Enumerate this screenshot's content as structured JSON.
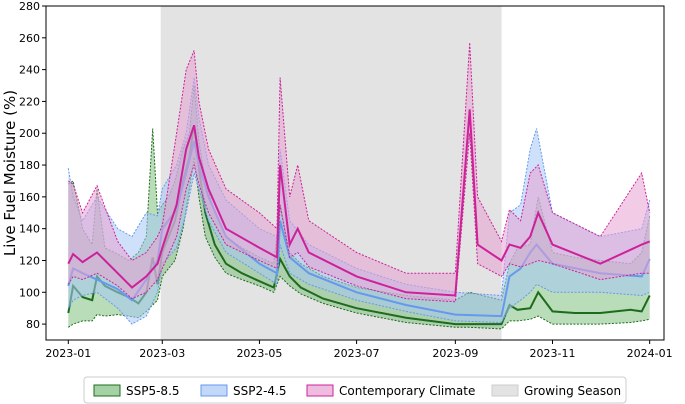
{
  "chart_data": {
    "type": "line",
    "title": "",
    "xlabel": "",
    "ylabel": "Live Fuel Moisture (%)",
    "xlim": [
      "2022-12-18",
      "2024-01-10"
    ],
    "ylim": [
      70,
      280
    ],
    "x_ticks": [
      "2023-01-01",
      "2023-03-01",
      "2023-05-01",
      "2023-07-01",
      "2023-09-01",
      "2023-11-01",
      "2024-01-01"
    ],
    "x_tick_labels": [
      "2023-01",
      "2023-03",
      "2023-05",
      "2023-07",
      "2023-09",
      "2023-11",
      "2024-01"
    ],
    "y_ticks": [
      80,
      100,
      120,
      140,
      160,
      180,
      200,
      220,
      240,
      260,
      280
    ],
    "grid": false,
    "legend_position": "bottom-outside",
    "shaded_region": {
      "name": "Growing Season",
      "start": "2023-02-28",
      "end": "2023-09-30",
      "color": "#e3e3e3"
    },
    "series": [
      {
        "name": "SSP5-8.5",
        "color": "#1d6b1d",
        "band_color": "#7fbf7f",
        "points": [
          [
            "2023-01-01",
            87,
            78,
            168
          ],
          [
            "2023-01-04",
            104,
            80,
            170
          ],
          [
            "2023-01-10",
            97,
            82,
            140
          ],
          [
            "2023-01-16",
            95,
            82,
            130
          ],
          [
            "2023-01-19",
            110,
            86,
            165
          ],
          [
            "2023-01-24",
            104,
            85,
            128
          ],
          [
            "2023-02-01",
            100,
            86,
            124
          ],
          [
            "2023-02-08",
            97,
            85,
            120
          ],
          [
            "2023-02-14",
            93,
            84,
            125
          ],
          [
            "2023-02-19",
            100,
            88,
            135
          ],
          [
            "2023-02-23",
            122,
            92,
            203
          ],
          [
            "2023-02-26",
            105,
            95,
            150
          ],
          [
            "2023-03-01",
            125,
            110,
            155
          ],
          [
            "2023-03-05",
            135,
            115,
            160
          ],
          [
            "2023-03-09",
            145,
            120,
            170
          ],
          [
            "2023-03-14",
            170,
            140,
            190
          ],
          [
            "2023-03-18",
            185,
            165,
            200
          ],
          [
            "2023-03-21",
            205,
            185,
            230
          ],
          [
            "2023-03-24",
            178,
            160,
            195
          ],
          [
            "2023-03-28",
            150,
            135,
            170
          ],
          [
            "2023-04-03",
            130,
            122,
            150
          ],
          [
            "2023-04-10",
            118,
            112,
            135
          ],
          [
            "2023-04-20",
            112,
            108,
            128
          ],
          [
            "2023-05-01",
            107,
            104,
            122
          ],
          [
            "2023-05-10",
            103,
            100,
            118
          ],
          [
            "2023-05-14",
            121,
            110,
            155
          ],
          [
            "2023-05-20",
            110,
            104,
            125
          ],
          [
            "2023-05-27",
            103,
            99,
            118
          ],
          [
            "2023-06-10",
            96,
            93,
            110
          ],
          [
            "2023-07-01",
            90,
            87,
            103
          ],
          [
            "2023-08-01",
            84,
            81,
            98
          ],
          [
            "2023-09-01",
            80,
            78,
            95
          ],
          [
            "2023-09-10",
            80,
            78,
            100
          ],
          [
            "2023-09-30",
            80,
            77,
            95
          ],
          [
            "2023-10-05",
            92,
            82,
            118
          ],
          [
            "2023-10-10",
            89,
            82,
            128
          ],
          [
            "2023-10-18",
            90,
            83,
            130
          ],
          [
            "2023-10-23",
            100,
            85,
            160
          ],
          [
            "2023-11-01",
            88,
            80,
            125
          ],
          [
            "2023-11-15",
            87,
            80,
            122
          ],
          [
            "2023-12-01",
            87,
            80,
            120
          ],
          [
            "2023-12-20",
            89,
            81,
            118
          ],
          [
            "2023-12-27",
            88,
            82,
            125
          ],
          [
            "2024-01-01",
            98,
            83,
            148
          ]
        ]
      },
      {
        "name": "SSP2-4.5",
        "color": "#6699ee",
        "band_color": "#a8c8f5",
        "points": [
          [
            "2023-01-01",
            104,
            90,
            178
          ],
          [
            "2023-01-04",
            115,
            95,
            160
          ],
          [
            "2023-01-10",
            112,
            98,
            145
          ],
          [
            "2023-01-19",
            108,
            100,
            160
          ],
          [
            "2023-02-01",
            102,
            90,
            140
          ],
          [
            "2023-02-10",
            95,
            80,
            135
          ],
          [
            "2023-02-19",
            108,
            85,
            150
          ],
          [
            "2023-02-26",
            120,
            100,
            148
          ],
          [
            "2023-03-01",
            140,
            118,
            165
          ],
          [
            "2023-03-10",
            152,
            128,
            180
          ],
          [
            "2023-03-16",
            175,
            150,
            200
          ],
          [
            "2023-03-21",
            195,
            175,
            235
          ],
          [
            "2023-03-24",
            180,
            165,
            210
          ],
          [
            "2023-03-30",
            160,
            145,
            180
          ],
          [
            "2023-04-10",
            135,
            125,
            158
          ],
          [
            "2023-05-01",
            118,
            112,
            140
          ],
          [
            "2023-05-12",
            112,
            105,
            135
          ],
          [
            "2023-05-14",
            145,
            130,
            190
          ],
          [
            "2023-05-20",
            122,
            112,
            145
          ],
          [
            "2023-06-01",
            112,
            105,
            130
          ],
          [
            "2023-07-01",
            100,
            95,
            115
          ],
          [
            "2023-08-01",
            92,
            88,
            105
          ],
          [
            "2023-09-01",
            86,
            82,
            100
          ],
          [
            "2023-09-30",
            85,
            81,
            98
          ],
          [
            "2023-10-05",
            110,
            90,
            150
          ],
          [
            "2023-10-12",
            115,
            95,
            155
          ],
          [
            "2023-10-18",
            125,
            100,
            190
          ],
          [
            "2023-10-22",
            130,
            105,
            203
          ],
          [
            "2023-11-01",
            118,
            100,
            150
          ],
          [
            "2023-12-01",
            112,
            100,
            135
          ],
          [
            "2023-12-27",
            110,
            98,
            140
          ],
          [
            "2024-01-01",
            121,
            100,
            158
          ]
        ]
      },
      {
        "name": "Contemporary Climate",
        "color": "#cc2299",
        "band_color": "#e8a0d2",
        "points": [
          [
            "2023-01-01",
            118,
            105,
            170
          ],
          [
            "2023-01-04",
            124,
            110,
            168
          ],
          [
            "2023-01-10",
            119,
            108,
            150
          ],
          [
            "2023-01-19",
            125,
            112,
            167
          ],
          [
            "2023-02-01",
            112,
            104,
            132
          ],
          [
            "2023-02-10",
            103,
            96,
            120
          ],
          [
            "2023-02-19",
            110,
            100,
            125
          ],
          [
            "2023-02-26",
            118,
            108,
            135
          ],
          [
            "2023-03-01",
            128,
            115,
            142
          ],
          [
            "2023-03-10",
            155,
            135,
            200
          ],
          [
            "2023-03-16",
            190,
            165,
            240
          ],
          [
            "2023-03-21",
            205,
            180,
            252
          ],
          [
            "2023-03-24",
            185,
            168,
            220
          ],
          [
            "2023-03-30",
            165,
            150,
            190
          ],
          [
            "2023-04-10",
            140,
            130,
            165
          ],
          [
            "2023-05-01",
            128,
            120,
            150
          ],
          [
            "2023-05-12",
            122,
            115,
            140
          ],
          [
            "2023-05-14",
            180,
            155,
            235
          ],
          [
            "2023-05-20",
            130,
            122,
            160
          ],
          [
            "2023-05-25",
            140,
            125,
            180
          ],
          [
            "2023-06-01",
            125,
            116,
            145
          ],
          [
            "2023-07-01",
            110,
            104,
            125
          ],
          [
            "2023-08-01",
            100,
            96,
            112
          ],
          [
            "2023-09-01",
            98,
            94,
            112
          ],
          [
            "2023-09-10",
            215,
            200,
            257
          ],
          [
            "2023-09-15",
            130,
            118,
            160
          ],
          [
            "2023-09-30",
            120,
            110,
            132
          ],
          [
            "2023-10-05",
            130,
            118,
            152
          ],
          [
            "2023-10-12",
            128,
            116,
            145
          ],
          [
            "2023-10-18",
            135,
            118,
            175
          ],
          [
            "2023-10-23",
            150,
            120,
            180
          ],
          [
            "2023-11-01",
            130,
            118,
            150
          ],
          [
            "2023-12-01",
            118,
            108,
            135
          ],
          [
            "2023-12-27",
            130,
            112,
            175
          ],
          [
            "2024-01-01",
            132,
            112,
            150
          ]
        ]
      }
    ],
    "legend": [
      {
        "label": "SSP5-8.5",
        "face": "#7fbf7f",
        "edge": "#1d6b1d"
      },
      {
        "label": "SSP2-4.5",
        "face": "#a8c8f5",
        "edge": "#6699ee"
      },
      {
        "label": "Contemporary Climate",
        "face": "#e8a0d2",
        "edge": "#cc2299"
      },
      {
        "label": "Growing Season",
        "face": "#e3e3e3",
        "edge": "#cccccc"
      }
    ]
  }
}
